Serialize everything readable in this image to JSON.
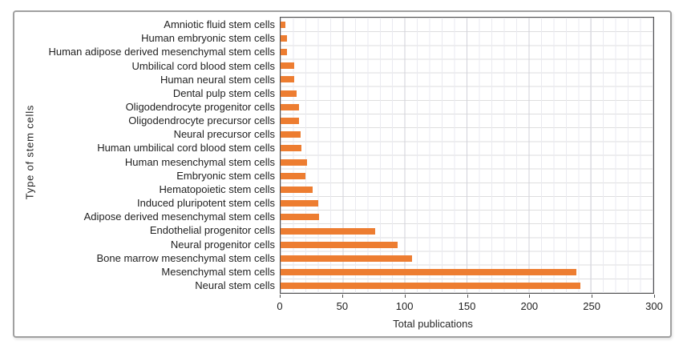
{
  "chart_data": {
    "type": "bar",
    "orientation": "horizontal",
    "xlabel": "Total publications",
    "ylabel": "Type of stem cells",
    "xlim": [
      0,
      300
    ],
    "x_ticks": [
      0,
      50,
      100,
      150,
      200,
      250,
      300
    ],
    "grid": "vertical minor every 10, vertical major every 50, horizontal row separators",
    "legend": "none",
    "bar_color": "#ED7D31",
    "categories": [
      "Amniotic fluid stem cells",
      "Human embryonic stem cells",
      "Human adipose derived mesenchymal stem cells",
      "Umbilical cord blood stem cells",
      "Human neural stem cells",
      "Dental pulp stem cells",
      "Oligodendrocyte progenitor cells",
      "Oligodendrocyte precursor cells",
      "Neural precursor cells",
      "Human umbilical cord blood stem cells",
      "Human mesenchymal stem cells",
      "Embryonic stem cells",
      "Hematopoietic stem cells",
      "Induced pluripotent stem cells",
      "Adipose derived mesenchymal stem cells",
      "Endothelial progenitor cells",
      "Neural progenitor cells",
      "Bone marrow mesenchymal stem cells",
      "Mesenchymal stem cells",
      "Neural stem cells"
    ],
    "values": [
      4,
      5,
      5,
      11,
      11,
      13,
      15,
      15,
      16,
      17,
      21,
      20,
      26,
      30,
      31,
      76,
      94,
      106,
      238,
      241
    ],
    "colors": {
      "figure_border": "#a0a0a0",
      "plot_border": "#4f4f4f",
      "grid_major": "#d2d2d9",
      "grid_minor": "#eaeaf0",
      "grid_rows": "#dededf",
      "text": "#1f1f1f"
    }
  }
}
